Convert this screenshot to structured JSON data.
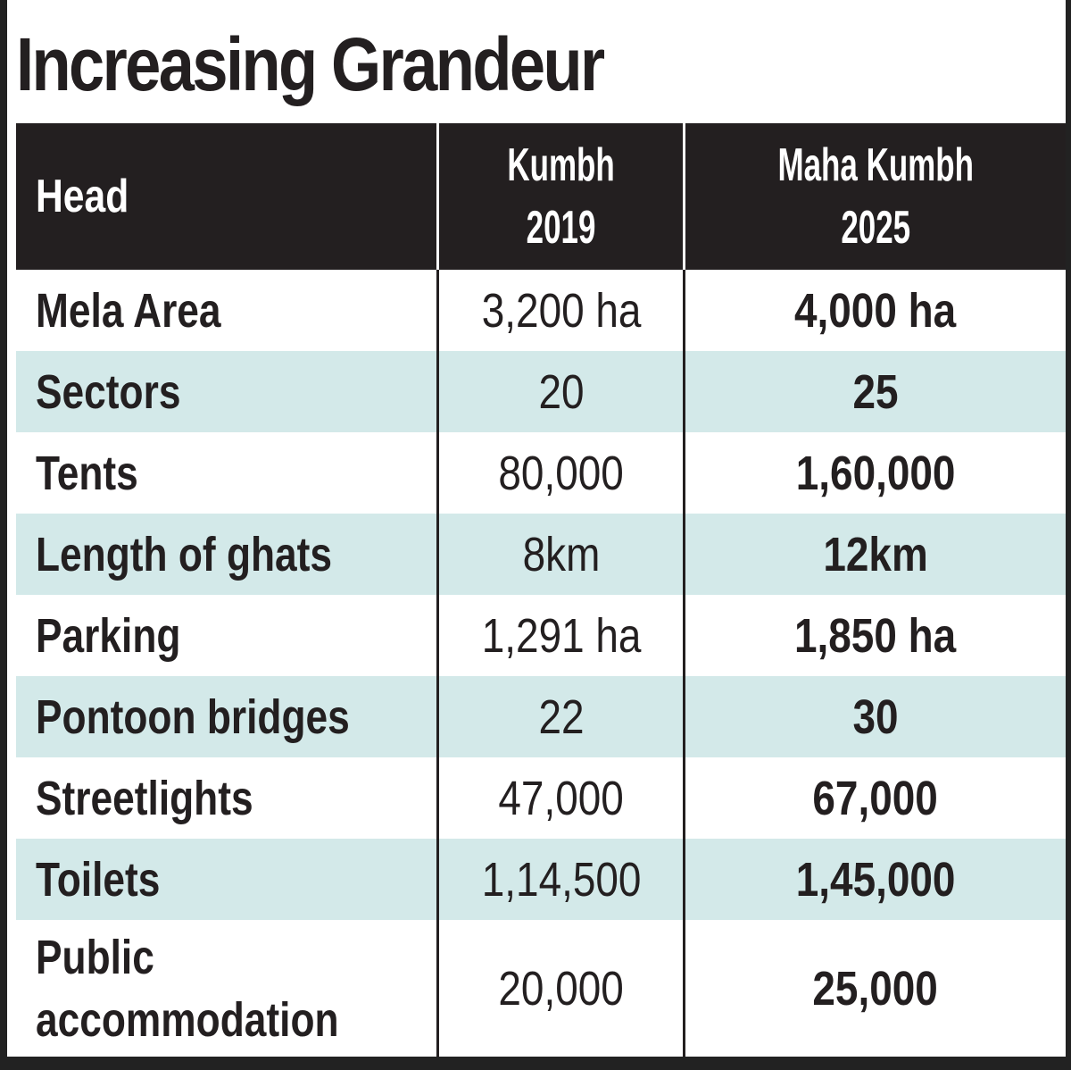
{
  "chart_data": {
    "type": "table",
    "title": "Increasing Grandeur",
    "columns": [
      {
        "key": "head",
        "label": "Head"
      },
      {
        "key": "kumbh_2019",
        "label_lines": [
          "Kumbh",
          "2019"
        ]
      },
      {
        "key": "maha_kumbh_2025",
        "label_lines": [
          "Maha Kumbh",
          "2025"
        ]
      }
    ],
    "rows": [
      {
        "head": "Mela Area",
        "kumbh_2019": "3,200 ha",
        "maha_kumbh_2025": "4,000 ha"
      },
      {
        "head": "Sectors",
        "kumbh_2019": "20",
        "maha_kumbh_2025": "25"
      },
      {
        "head": "Tents",
        "kumbh_2019": "80,000",
        "maha_kumbh_2025": "1,60,000"
      },
      {
        "head": "Length of ghats",
        "kumbh_2019": "8km",
        "maha_kumbh_2025": "12km"
      },
      {
        "head": "Parking",
        "kumbh_2019": "1,291 ha",
        "maha_kumbh_2025": "1,850 ha"
      },
      {
        "head": "Pontoon bridges",
        "kumbh_2019": "22",
        "maha_kumbh_2025": "30"
      },
      {
        "head": "Streetlights",
        "kumbh_2019": "47,000",
        "maha_kumbh_2025": "67,000"
      },
      {
        "head": "Toilets",
        "kumbh_2019": "1,14,500",
        "maha_kumbh_2025": "1,45,000"
      },
      {
        "head": "Public accommodation",
        "kumbh_2019": "20,000",
        "maha_kumbh_2025": "25,000"
      }
    ]
  },
  "colors": {
    "header_bg": "#231f20",
    "header_text": "#ffffff",
    "stripe": "#d3e9e9",
    "text": "#231f20"
  }
}
